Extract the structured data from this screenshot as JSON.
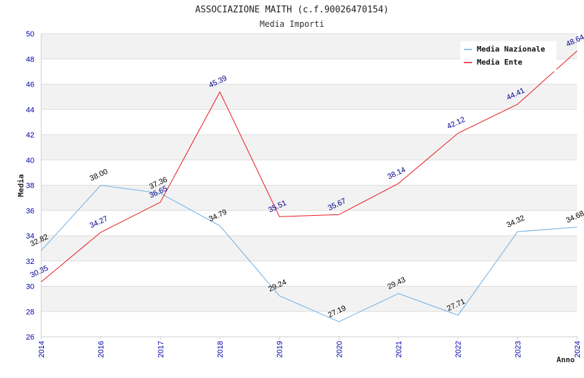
{
  "chart_data": {
    "type": "line",
    "title": "ASSOCIAZIONE MAITH (c.f.90026470154)",
    "subtitle": "Media Importi",
    "xlabel": "Anno",
    "ylabel": "Media",
    "x": [
      "2014",
      "2016",
      "2017",
      "2018",
      "2019",
      "2020",
      "2021",
      "2022",
      "2023",
      "2024"
    ],
    "ylim": [
      26,
      50
    ],
    "yticks": [
      26,
      28,
      30,
      32,
      34,
      36,
      38,
      40,
      42,
      44,
      46,
      48,
      50
    ],
    "grid": true,
    "legend_position": "top-right",
    "series": [
      {
        "name": "Media Nazionale",
        "color": "#6aaee6",
        "label_color": "#000000",
        "values": [
          32.82,
          38.0,
          37.36,
          34.79,
          29.24,
          27.19,
          29.43,
          27.71,
          34.32,
          34.68
        ],
        "labels": [
          "32.82",
          "38.00",
          "37.36",
          "34.79",
          "29.24",
          "27.19",
          "29.43",
          "27.71",
          "34.32",
          "34.68"
        ]
      },
      {
        "name": "Media Ente",
        "color": "#e8141c",
        "label_color": "#00008b",
        "values": [
          30.35,
          34.27,
          36.65,
          45.39,
          35.51,
          35.67,
          38.14,
          42.12,
          44.41,
          48.64
        ],
        "labels": [
          "30.35",
          "34.27",
          "36.65",
          "45.39",
          "35.51",
          "35.67",
          "38.14",
          "42.12",
          "44.41",
          "48.64"
        ]
      }
    ]
  }
}
